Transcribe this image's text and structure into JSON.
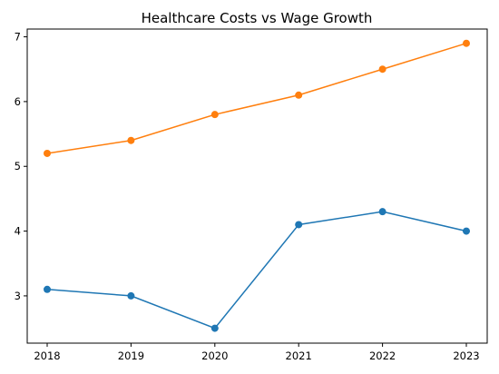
{
  "chart_data": {
    "type": "line",
    "title": "Healthcare Costs vs Wage Growth",
    "xlabel": "",
    "ylabel": "",
    "categories": [
      "2018",
      "2019",
      "2020",
      "2021",
      "2022",
      "2023"
    ],
    "ylim": [
      2.27,
      7.12
    ],
    "yticks": [
      3,
      4,
      5,
      6,
      7
    ],
    "grid": false,
    "legend": "none",
    "series": [
      {
        "color": "#1f77b4",
        "values": [
          3.1,
          3.0,
          2.5,
          4.1,
          4.3,
          4.0
        ]
      },
      {
        "color": "#ff7f0e",
        "values": [
          5.2,
          5.4,
          5.8,
          6.1,
          6.5,
          6.9
        ]
      }
    ]
  }
}
